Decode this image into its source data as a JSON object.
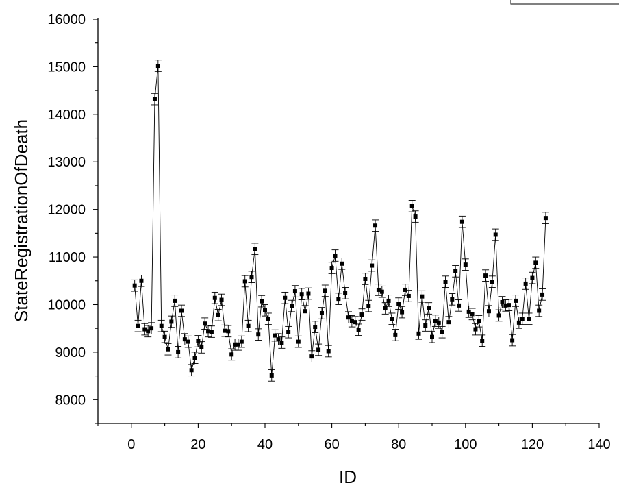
{
  "chart_data": {
    "type": "scatter",
    "title": "",
    "xlabel": "ID",
    "ylabel": "StateRegistrationOfDeath",
    "xlim": [
      -10,
      140
    ],
    "ylim": [
      7500,
      16000
    ],
    "xticks": [
      0,
      20,
      40,
      60,
      80,
      100,
      120,
      140
    ],
    "yticks": [
      8000,
      9000,
      10000,
      11000,
      12000,
      13000,
      14000,
      15000,
      16000
    ],
    "grid": false,
    "marker": "square",
    "connected": true,
    "error_bars": true,
    "error_bar_halfwidth": 120,
    "series": [
      {
        "x": [
          1,
          2,
          3,
          4,
          5,
          6,
          7,
          8,
          9,
          10,
          11,
          12,
          13,
          14,
          15,
          16,
          17,
          18,
          19,
          20,
          21,
          22,
          23,
          24,
          25,
          26,
          27,
          28,
          29,
          30,
          31,
          32,
          33,
          34,
          35,
          36,
          37,
          38,
          39,
          40,
          41,
          42,
          43,
          44,
          45,
          46,
          47,
          48,
          49,
          50,
          51,
          52,
          53,
          54,
          55,
          56,
          57,
          58,
          59,
          60,
          61,
          62,
          63,
          64,
          65,
          66,
          67,
          68,
          69,
          70,
          71,
          72,
          73,
          74,
          75,
          76,
          77,
          78,
          79,
          80,
          81,
          82,
          83,
          84,
          85,
          86,
          87,
          88,
          89,
          90,
          91,
          92,
          93,
          94,
          95,
          96,
          97,
          98,
          99,
          100,
          101,
          102,
          103,
          104,
          105,
          106,
          107,
          108,
          109,
          110,
          111,
          112,
          113,
          114,
          115,
          116,
          117,
          118,
          119,
          120,
          121,
          122,
          123,
          124
        ],
        "y": [
          10400,
          9550,
          10500,
          9480,
          9440,
          9500,
          14320,
          15020,
          9550,
          9320,
          9060,
          9640,
          10080,
          9000,
          9870,
          9270,
          9220,
          8620,
          8880,
          9230,
          9100,
          9600,
          9440,
          9430,
          10140,
          9780,
          10100,
          9450,
          9440,
          8950,
          9160,
          9160,
          9220,
          10490,
          9550,
          10580,
          11170,
          9370,
          10070,
          9880,
          9700,
          8510,
          9350,
          9270,
          9200,
          10140,
          9420,
          9970,
          10280,
          9220,
          10220,
          9860,
          10230,
          8910,
          9530,
          9050,
          9820,
          10290,
          9020,
          10770,
          11030,
          10120,
          10860,
          10240,
          9730,
          9650,
          9630,
          9470,
          9790,
          10540,
          9970,
          10820,
          11660,
          10310,
          10270,
          9920,
          10080,
          9700,
          9360,
          10020,
          9840,
          10310,
          10180,
          12070,
          11850,
          9390,
          10170,
          9560,
          9920,
          9320,
          9660,
          9620,
          9420,
          10480,
          9630,
          10110,
          10700,
          9980,
          11740,
          10840,
          9850,
          9800,
          9480,
          9650,
          9240,
          10610,
          9860,
          10480,
          11470,
          9770,
          10050,
          9980,
          9990,
          9250,
          10080,
          9620,
          9700,
          10440,
          9700,
          10560,
          10880,
          9870,
          10210,
          11820
        ]
      }
    ]
  }
}
